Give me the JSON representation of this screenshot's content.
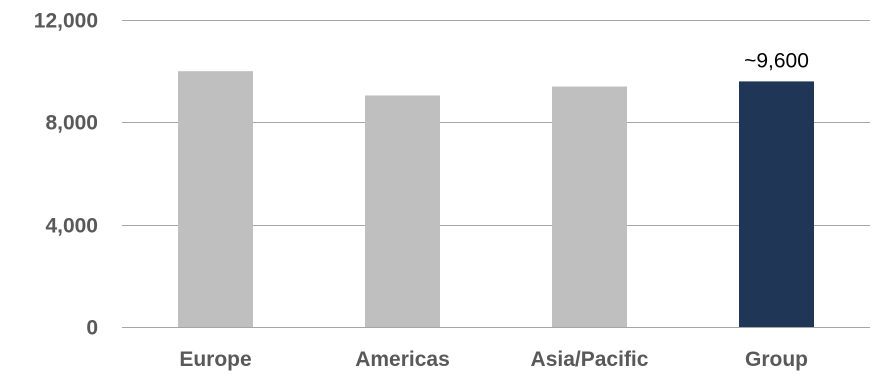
{
  "chart_data": {
    "type": "bar",
    "categories": [
      "Europe",
      "Americas",
      "Asia/Pacific",
      "Group"
    ],
    "values": [
      10000,
      9050,
      9400,
      9600
    ],
    "colors": [
      "#bfbfbf",
      "#bfbfbf",
      "#bfbfbf",
      "#203657"
    ],
    "data_labels": [
      "",
      "",
      "",
      "~9,600"
    ],
    "yticks": [
      0,
      4000,
      8000,
      12000
    ],
    "ytick_labels": [
      "0",
      "4,000",
      "8,000",
      "12,000"
    ],
    "ylim": [
      0,
      12000
    ],
    "grid": true,
    "title": "",
    "xlabel": "",
    "ylabel": ""
  }
}
